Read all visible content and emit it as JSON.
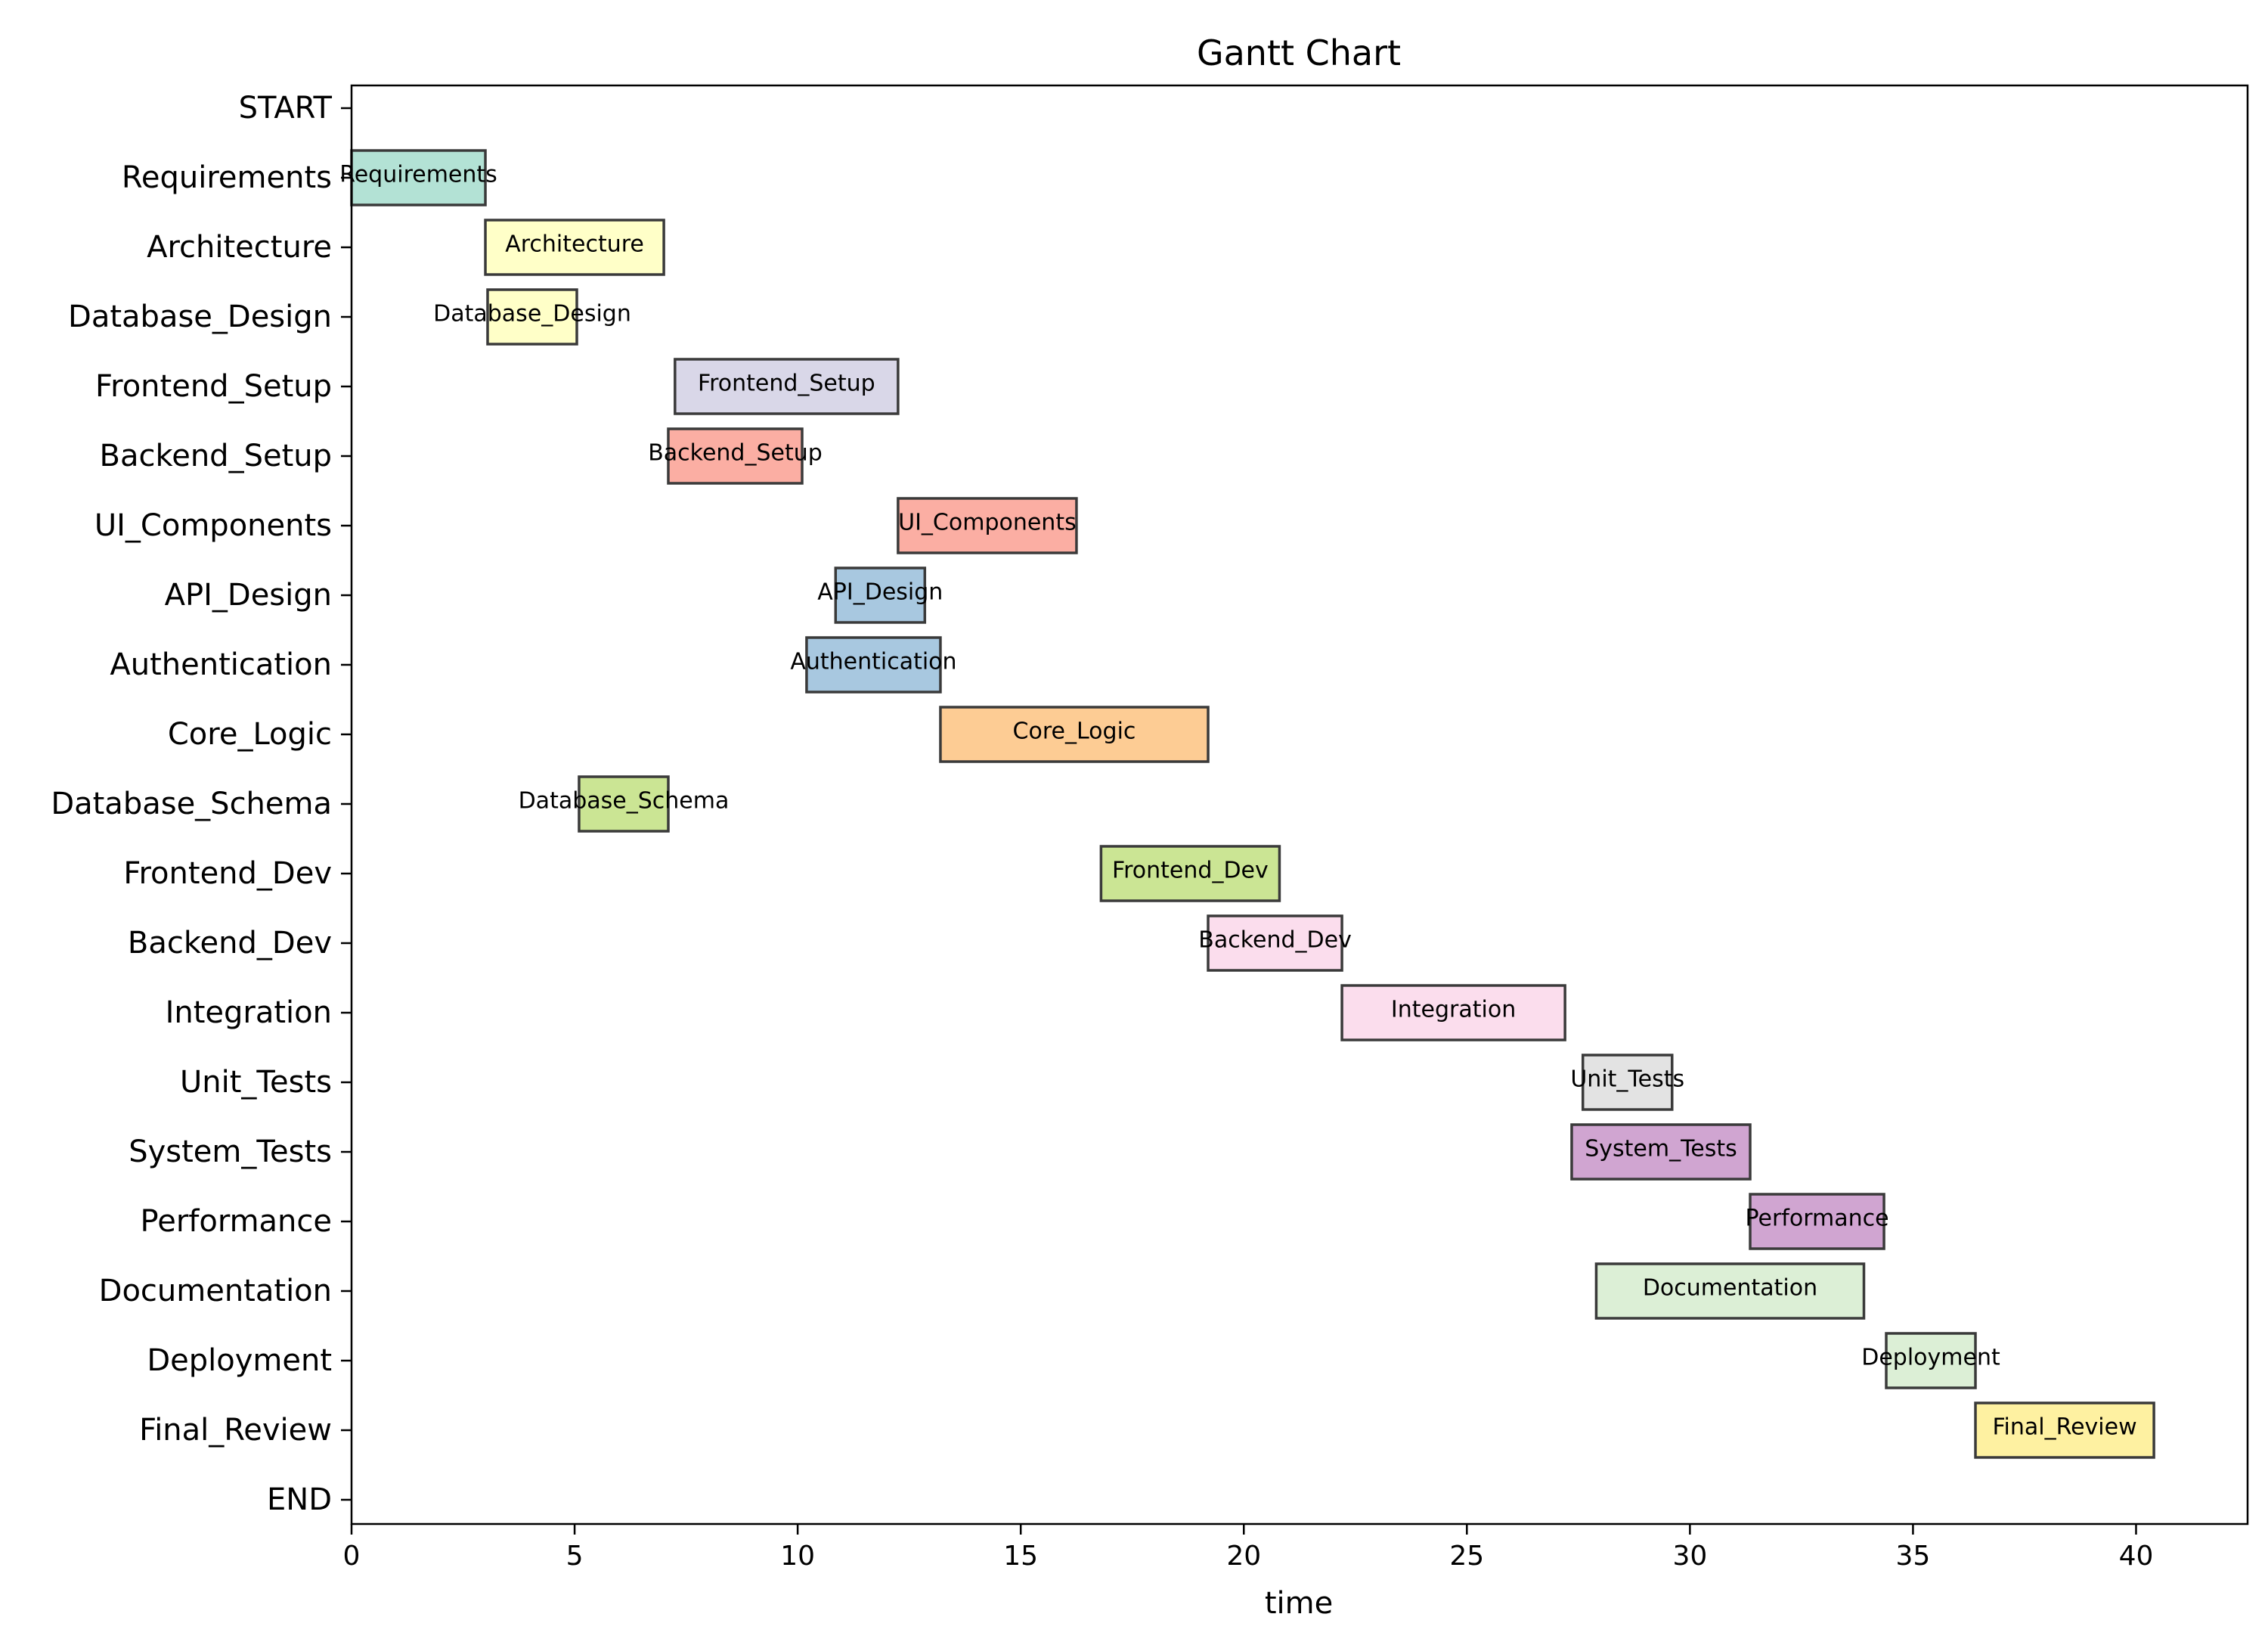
{
  "chart_data": {
    "type": "gantt",
    "title": "Gantt Chart",
    "xlabel": "time",
    "ylabel": "",
    "xlim": [
      0,
      42.5
    ],
    "xticks": [
      0,
      5,
      10,
      15,
      20,
      25,
      30,
      35,
      40
    ],
    "rows": [
      "START",
      "Requirements",
      "Architecture",
      "Database_Design",
      "Frontend_Setup",
      "Backend_Setup",
      "UI_Components",
      "API_Design",
      "Authentication",
      "Core_Logic",
      "Database_Schema",
      "Frontend_Dev",
      "Backend_Dev",
      "Integration",
      "Unit_Tests",
      "System_Tests",
      "Performance",
      "Documentation",
      "Deployment",
      "Final_Review",
      "END"
    ],
    "tasks": [
      {
        "name": "Requirements",
        "start": 0.0,
        "end": 3.0,
        "color": "#b3e2d5"
      },
      {
        "name": "Architecture",
        "start": 3.0,
        "end": 7.0,
        "color": "#ffffc8"
      },
      {
        "name": "Database_Design",
        "start": 3.05,
        "end": 5.05,
        "color": "#ffffc8"
      },
      {
        "name": "Frontend_Setup",
        "start": 7.25,
        "end": 12.25,
        "color": "#d9d7e8"
      },
      {
        "name": "Backend_Setup",
        "start": 7.1,
        "end": 10.1,
        "color": "#fbaea3"
      },
      {
        "name": "UI_Components",
        "start": 12.25,
        "end": 16.25,
        "color": "#fbaea3"
      },
      {
        "name": "API_Design",
        "start": 10.85,
        "end": 12.85,
        "color": "#a8c8e0"
      },
      {
        "name": "Authentication",
        "start": 10.2,
        "end": 13.2,
        "color": "#a8c8e0"
      },
      {
        "name": "Core_Logic",
        "start": 13.2,
        "end": 19.2,
        "color": "#fdcc94"
      },
      {
        "name": "Database_Schema",
        "start": 5.1,
        "end": 7.1,
        "color": "#cbe594"
      },
      {
        "name": "Frontend_Dev",
        "start": 16.8,
        "end": 20.8,
        "color": "#cbe594"
      },
      {
        "name": "Backend_Dev",
        "start": 19.2,
        "end": 22.2,
        "color": "#fbdded"
      },
      {
        "name": "Integration",
        "start": 22.2,
        "end": 27.2,
        "color": "#fbdded"
      },
      {
        "name": "Unit_Tests",
        "start": 27.6,
        "end": 29.6,
        "color": "#e3e3e3"
      },
      {
        "name": "System_Tests",
        "start": 27.35,
        "end": 31.35,
        "color": "#d0a5d1"
      },
      {
        "name": "Performance",
        "start": 31.35,
        "end": 34.35,
        "color": "#d0a5d1"
      },
      {
        "name": "Documentation",
        "start": 27.9,
        "end": 33.9,
        "color": "#dcefd6"
      },
      {
        "name": "Deployment",
        "start": 34.4,
        "end": 36.4,
        "color": "#dcefd6"
      },
      {
        "name": "Final_Review",
        "start": 36.4,
        "end": 40.4,
        "color": "#fef1a1"
      }
    ]
  }
}
